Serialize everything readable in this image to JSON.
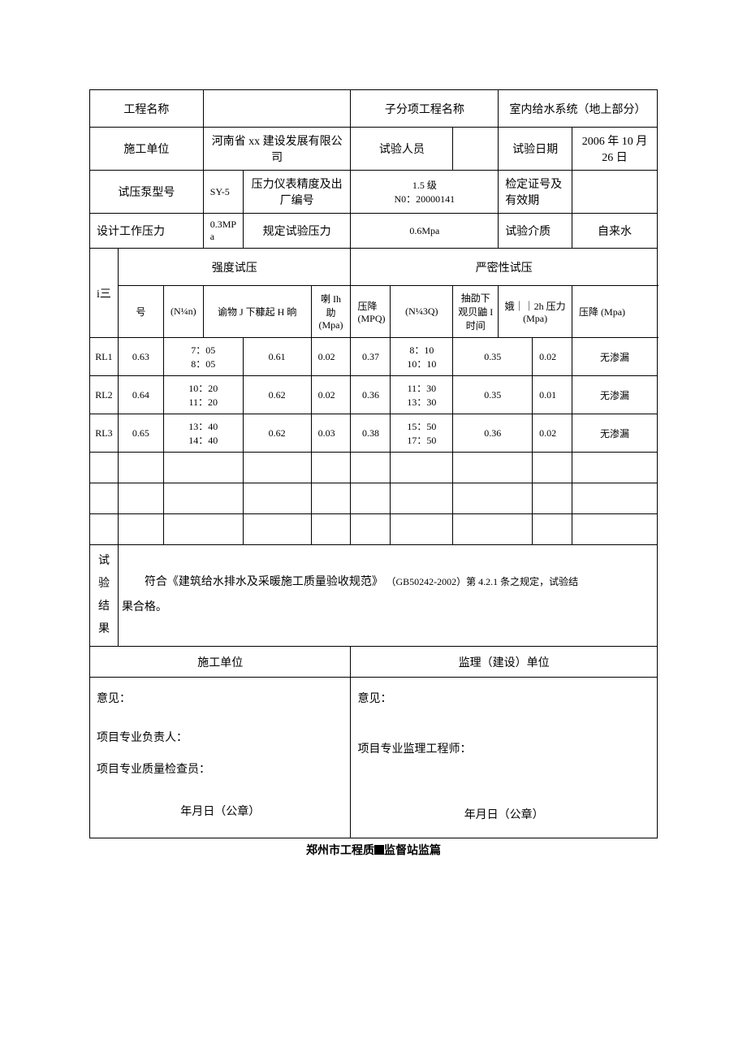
{
  "header": {
    "projectNameLabel": "工程名称",
    "projectNameValue": "",
    "subItemLabel": "子分项工程名称",
    "subItemValue": "室内给水系统（地上部分）",
    "contractorLabel": "施工单位",
    "contractorValue": "河南省 xx 建设发展有限公司",
    "testPersonLabel": "试验人员",
    "testPersonValue": "",
    "testDateLabel": "试验日期",
    "testDateValue": "2006 年 10 月 26 日",
    "pumpModelLabel": "试压泵型号",
    "pumpModelValue": "SY-5",
    "gaugeLabel": "压力仪表精度及出厂编号",
    "gaugeValue1": "1.5 级",
    "gaugeValue2": "N0：20000141",
    "certLabel": "检定证号及有效期",
    "certValue": "",
    "designPressureLabel": "设计工作压力",
    "designPressureValue": "0.3MPa",
    "specPressureLabel": "规定试验压力",
    "specPressureValue": "0.6Mpa",
    "mediumLabel": "试验介质",
    "mediumValue": "自来水"
  },
  "sections": {
    "serialLabel": "i三",
    "strengthTitle": "强度试压",
    "tightnessTitle": "严密性试压",
    "serialCol": "号",
    "col1": "(N¼n)",
    "col2": "谕物 J 下糠起 H 晌",
    "col3": "喇 Ih 助(Mpa)",
    "col4": "压降 (MPQ)",
    "col5": "(N¼3Q)",
    "col6": "抽劭下观贝鼬 I 时间",
    "col7": "娥｜｜2h 压力(Mpa)",
    "col8": "压降 (Mpa)",
    "resultLabel": "试验结果"
  },
  "rows": [
    {
      "id": "RL1",
      "v1": "0.63",
      "t1a": "7：05",
      "t1b": "8：05",
      "v2": "0.61",
      "v3": "0.02",
      "v4": "0.37",
      "t2a": "8：10",
      "t2b": "10：10",
      "v5": "0.35",
      "v6": "0.02",
      "res": "无渗漏"
    },
    {
      "id": "RL2",
      "v1": "0.64",
      "t1a": "10：20",
      "t1b": "11：20",
      "v2": "0.62",
      "v3": "0.02",
      "v4": "0.36",
      "t2a": "11：30",
      "t2b": "13：30",
      "v5": "0.35",
      "v6": "0.01",
      "res": "无渗漏"
    },
    {
      "id": "RL3",
      "v1": "0.65",
      "t1a": "13：40",
      "t1b": "14：40",
      "v2": "0.62",
      "v3": "0.03",
      "v4": "0.38",
      "t2a": "15：50",
      "t2b": "17：50",
      "v5": "0.36",
      "v6": "0.02",
      "res": "无渗漏"
    }
  ],
  "result": {
    "text1": "符合《建筑给水排水及采暖施工质量验收规范》",
    "text2": "（GB50242-2002）第 4.2.1 条之规定，试验结",
    "text3": "果合格。"
  },
  "sig": {
    "contractorTitle": "施工单位",
    "supervisorTitle": "监理（建设）单位",
    "opinion": "意见：",
    "projLeader": "项目专业负责人：",
    "qcPerson": "项目专业质量检查员：",
    "supEngineer": "项目专业监理工程师：",
    "dateSeal": "年月日（公章）"
  },
  "footer": {
    "prefix": "郑州市工程质",
    "suffix": "监督站监篇"
  }
}
